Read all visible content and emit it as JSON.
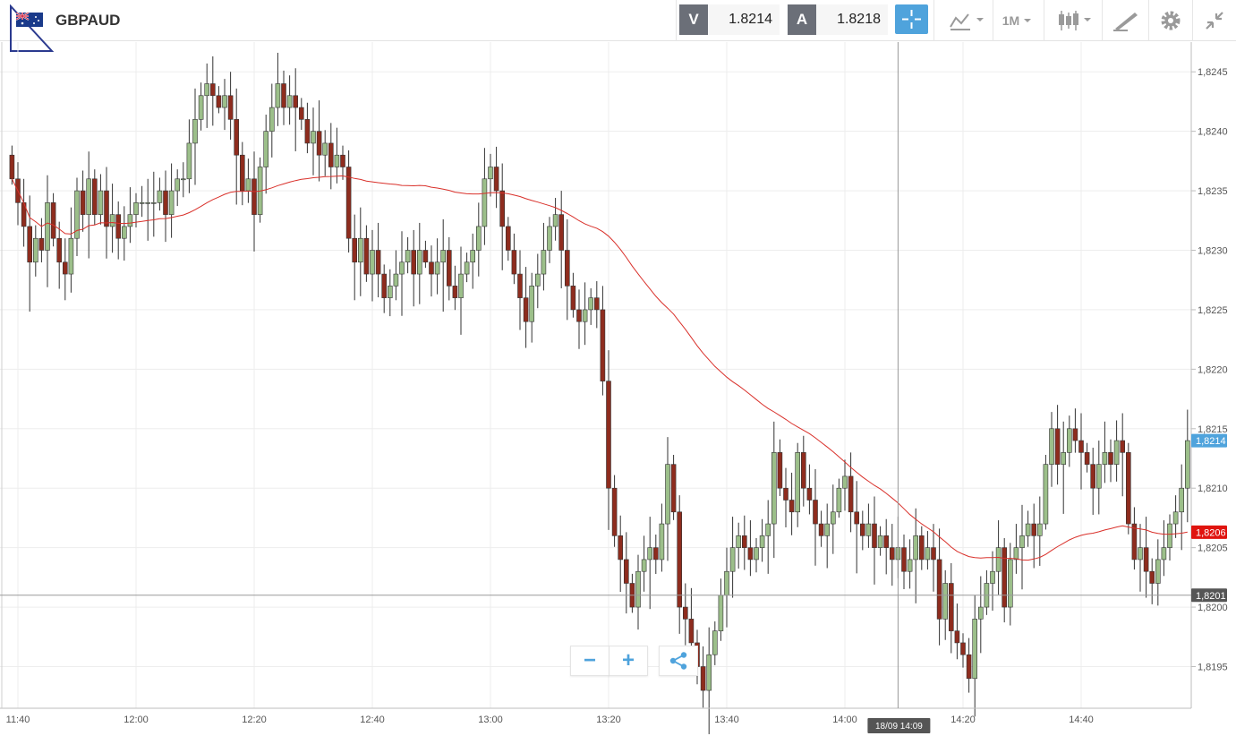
{
  "header": {
    "symbol": "GBPAUD",
    "sell_tag": "V",
    "sell_price": "1.8214",
    "buy_tag": "A",
    "buy_price": "1.8218",
    "timeframe": "1M",
    "icons": [
      "flag-icon",
      "crosshair-icon",
      "chart-type-icon",
      "candlestick-icon",
      "draw-icon",
      "gear-icon",
      "collapse-icon"
    ]
  },
  "colors": {
    "up": "#9cbf8a",
    "down": "#8e2c1e",
    "ma": "#d9302a",
    "accent": "#4fa3dc",
    "last_label": "#4fa3dc",
    "ma_label": "#e0140f",
    "cross_label": "#555555"
  },
  "chart_data": {
    "type": "candlestick",
    "ylim": [
      1.81915,
      1.82475
    ],
    "y_ticks": [
      "1,8195",
      "1,8200",
      "1,8205",
      "1,8210",
      "1,8215",
      "1,8220",
      "1,8225",
      "1,8230",
      "1,8235",
      "1,8240",
      "1,8245"
    ],
    "x_ticks": [
      "11:40",
      "12:00",
      "12:20",
      "12:40",
      "13:00",
      "13:20",
      "13:40",
      "14:00",
      "14:20",
      "14:40"
    ],
    "grid": true,
    "start_time": "11:39",
    "end_time": "14:53",
    "closes": [
      1.8236,
      1.8234,
      1.8232,
      1.8229,
      1.8231,
      1.823,
      1.8234,
      1.8231,
      1.8229,
      1.8228,
      1.8231,
      1.8235,
      1.8233,
      1.8236,
      1.8233,
      1.8235,
      1.8232,
      1.8233,
      1.8231,
      1.8232,
      1.8233,
      1.8234,
      1.8234,
      1.8234,
      1.8234,
      1.8235,
      1.8233,
      1.8235,
      1.8236,
      1.8236,
      1.8239,
      1.8241,
      1.8243,
      1.8244,
      1.8243,
      1.8242,
      1.8243,
      1.8241,
      1.8238,
      1.8235,
      1.8236,
      1.8233,
      1.8237,
      1.824,
      1.8242,
      1.8244,
      1.8242,
      1.8243,
      1.8242,
      1.8241,
      1.8239,
      1.824,
      1.8238,
      1.8239,
      1.8237,
      1.8238,
      1.8237,
      1.8231,
      1.8229,
      1.8231,
      1.8228,
      1.823,
      1.8228,
      1.8226,
      1.8227,
      1.8228,
      1.8229,
      1.823,
      1.8228,
      1.823,
      1.8229,
      1.8228,
      1.8229,
      1.823,
      1.8227,
      1.8226,
      1.8228,
      1.8229,
      1.823,
      1.8232,
      1.8236,
      1.8237,
      1.8235,
      1.8232,
      1.823,
      1.8228,
      1.8226,
      1.8224,
      1.8227,
      1.8228,
      1.823,
      1.8232,
      1.8233,
      1.823,
      1.8227,
      1.8225,
      1.8224,
      1.8225,
      1.8226,
      1.8225,
      1.8219,
      1.821,
      1.8206,
      1.8204,
      1.8202,
      1.82,
      1.8203,
      1.8204,
      1.8205,
      1.8204,
      1.8207,
      1.8212,
      1.8208,
      1.82,
      1.8199,
      1.8197,
      1.8195,
      1.8193,
      1.8196,
      1.8198,
      1.8201,
      1.8203,
      1.8205,
      1.8206,
      1.8205,
      1.8204,
      1.8205,
      1.8206,
      1.8207,
      1.8213,
      1.821,
      1.8209,
      1.8208,
      1.8213,
      1.821,
      1.8209,
      1.8207,
      1.8206,
      1.8207,
      1.8208,
      1.821,
      1.8211,
      1.8208,
      1.8207,
      1.8206,
      1.8207,
      1.8205,
      1.8206,
      1.8205,
      1.8204,
      1.8205,
      1.8203,
      1.8204,
      1.8206,
      1.8204,
      1.8205,
      1.8204,
      1.8199,
      1.8202,
      1.8198,
      1.8197,
      1.8196,
      1.8194,
      1.8199,
      1.82,
      1.8202,
      1.8203,
      1.8205,
      1.82,
      1.8204,
      1.8205,
      1.8206,
      1.8207,
      1.8206,
      1.8207,
      1.8212,
      1.8215,
      1.8212,
      1.8213,
      1.8215,
      1.8214,
      1.8213,
      1.8212,
      1.821,
      1.8212,
      1.8213,
      1.8212,
      1.8214,
      1.8213,
      1.8207,
      1.8204,
      1.8205,
      1.8203,
      1.8202,
      1.8204,
      1.8205,
      1.8207,
      1.8208,
      1.821,
      1.8214
    ],
    "ma_series": {
      "period": 60,
      "label": "1,8206"
    },
    "last_price_label": "1,8214",
    "crosshair": {
      "price": 1.8201,
      "price_label": "1,8201",
      "time_label": "18/09 14:09"
    }
  },
  "toolbar": {
    "zoom_out": "−",
    "zoom_in": "+"
  }
}
